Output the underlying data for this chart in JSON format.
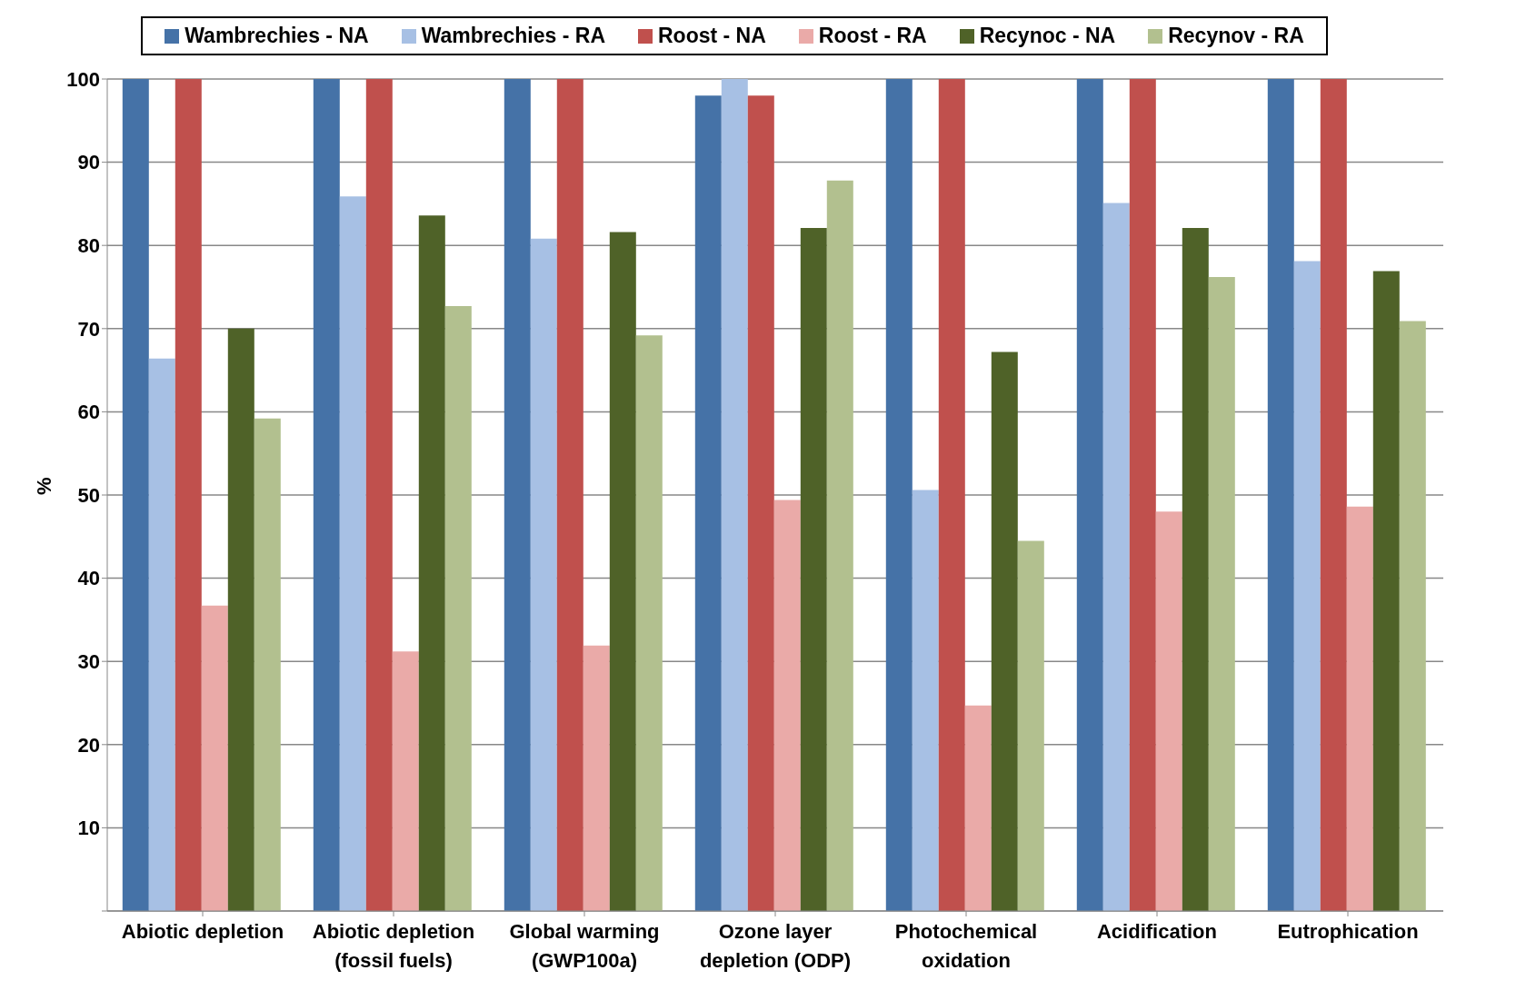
{
  "chart_data": {
    "type": "bar",
    "ylabel": "%",
    "categories": [
      "Abiotic depletion",
      "Abiotic depletion (fossil fuels)",
      "Global warming (GWP100a)",
      "Ozone layer depletion (ODP)",
      "Photochemical oxidation",
      "Acidification",
      "Eutrophication"
    ],
    "series": [
      {
        "name": "Wambrechies - NA",
        "color": "#4572a7",
        "values": [
          100,
          100,
          100,
          98,
          100,
          100,
          100
        ]
      },
      {
        "name": "Wambrechies - RA",
        "color": "#a7c0e4",
        "values": [
          66.4,
          85.9,
          80.8,
          100,
          50.6,
          85.1,
          78.1
        ]
      },
      {
        "name": "Roost - NA",
        "color": "#c0504d",
        "values": [
          100,
          100,
          100,
          98,
          100,
          100,
          100
        ]
      },
      {
        "name": "Roost - RA",
        "color": "#eaaaa8",
        "values": [
          36.7,
          31.2,
          31.9,
          49.4,
          24.7,
          48.0,
          48.6
        ]
      },
      {
        "name": "Recynoc - NA",
        "color": "#4f6228",
        "values": [
          70.0,
          83.6,
          81.6,
          82.1,
          67.2,
          82.1,
          76.9
        ]
      },
      {
        "name": "Recynov - RA",
        "color": "#b2c08f",
        "values": [
          59.2,
          72.7,
          69.2,
          87.8,
          44.5,
          76.2,
          70.9
        ]
      }
    ],
    "ylim": [
      0,
      100
    ],
    "yticks": [
      {
        "value": 0,
        "label": null
      },
      10,
      20,
      30,
      40,
      50,
      60,
      70,
      80,
      90,
      100
    ],
    "grid": "y",
    "legend": "top"
  }
}
